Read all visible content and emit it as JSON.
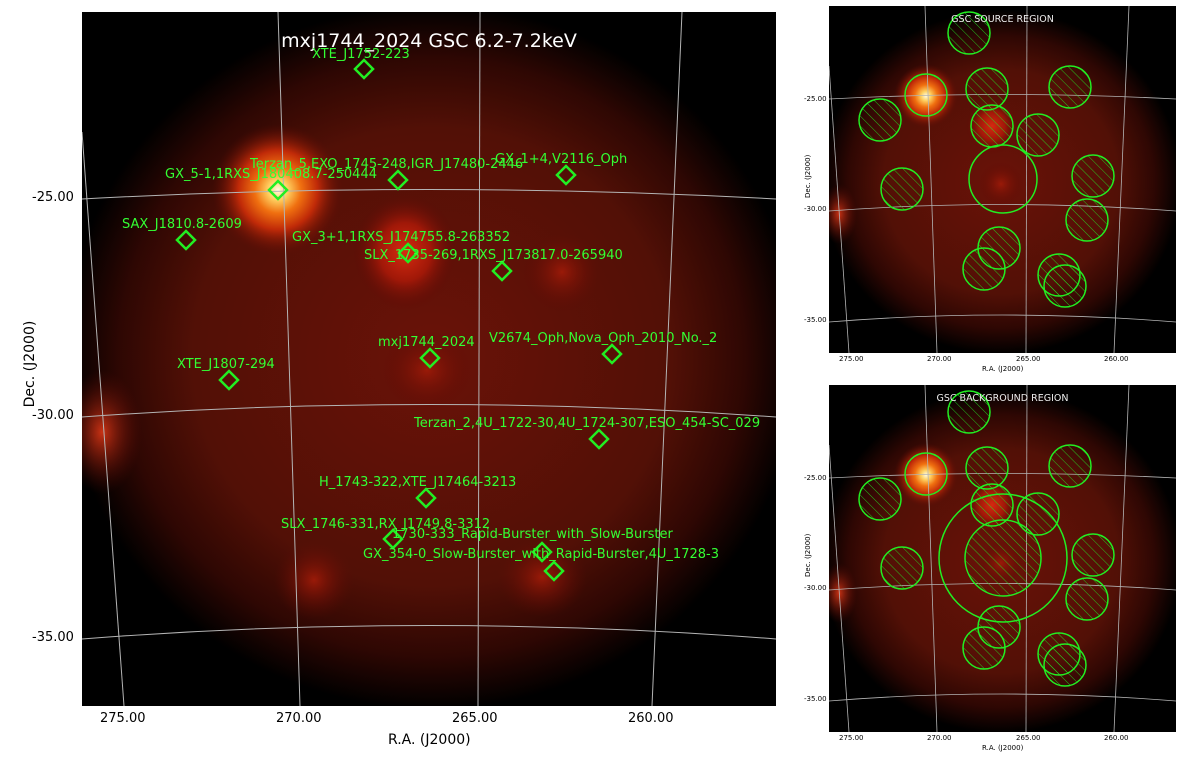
{
  "main": {
    "title": "mxj1744_2024 GSC 6.2-7.2keV",
    "xlabel": "R.A. (J2000)",
    "ylabel": "Dec. (J2000)",
    "xticks": [
      "275.00",
      "270.00",
      "265.00",
      "260.00"
    ],
    "yticks": [
      "-25.00",
      "-30.00",
      "-35.00"
    ],
    "sources": [
      {
        "label": "XTE_J1752-223"
      },
      {
        "label": "Terzan_5,EXO_1745-248,IGR_J17480-2446"
      },
      {
        "label": "GX_5-1,1RXS_J180408.7-250444"
      },
      {
        "label": "GX_1+4,V2116_Oph"
      },
      {
        "label": "SAX_J1810.8-2609"
      },
      {
        "label": "GX_3+1,1RXS_J174755.8-263352"
      },
      {
        "label": "SLX_1735-269,1RXS_J173817.0-265940"
      },
      {
        "label": "mxj1744_2024"
      },
      {
        "label": "V2674_Oph,Nova_Oph_2010_No._2"
      },
      {
        "label": "XTE_J1807-294"
      },
      {
        "label": "Terzan_2,4U_1722-30,4U_1724-307,ESO_454-SC_029"
      },
      {
        "label": "H_1743-322,XTE_J17464-3213"
      },
      {
        "label": "SLX_1746-331,RX_J1749.8-3312"
      },
      {
        "label": "1730-333_Rapid-Burster_with_Slow-Burster"
      },
      {
        "label": "GX_354-0_Slow-Burster_with_Rapid-Burster,4U_1728-3"
      }
    ]
  },
  "source_panel": {
    "title": "GSC SOURCE REGION",
    "xlabel": "R.A. (J2000)",
    "ylabel": "Dec. (J2000)",
    "xticks": [
      "275.00",
      "270.00",
      "265.00",
      "260.00"
    ],
    "yticks": [
      "-25.00",
      "-30.00",
      "-35.00"
    ]
  },
  "background_panel": {
    "title": "GSC BACKGROUND REGION",
    "xlabel": "R.A. (J2000)",
    "ylabel": "Dec. (J2000)",
    "xticks": [
      "275.00",
      "270.00",
      "265.00",
      "260.00"
    ],
    "yticks": [
      "-25.00",
      "-30.00",
      "-35.00"
    ]
  },
  "colors": {
    "marker": "#22ee22",
    "label": "#33ff33",
    "grid": "#b4b4b4",
    "sky": "#5a0a05"
  }
}
